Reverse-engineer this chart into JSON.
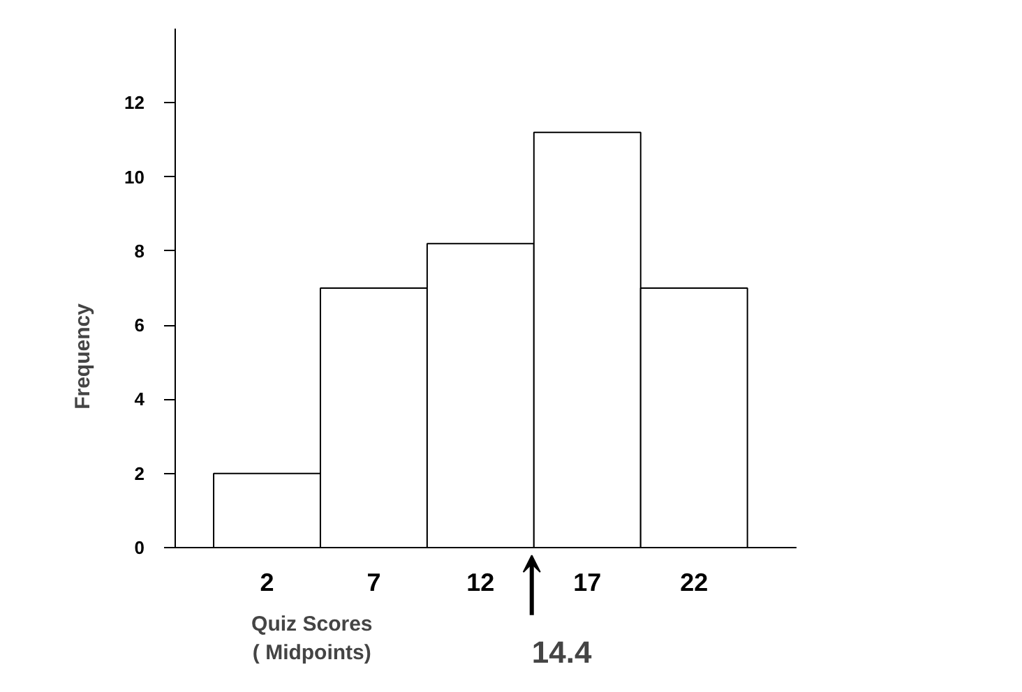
{
  "chart_data": {
    "type": "histogram",
    "xlabel": "Quiz Scores\n( Midpoints)",
    "ylabel": "Frequency",
    "bins": [
      -0.5,
      4.5,
      9.5,
      14.5,
      19.5,
      24.5
    ],
    "values": [
      2,
      7,
      8.2,
      11.2,
      7
    ],
    "color": "#ffffff",
    "xlim": [
      -2.3,
      26.8
    ],
    "xticks": [
      2,
      7,
      12,
      17,
      22
    ],
    "ylim": [
      0,
      14
    ],
    "yticks": [
      0,
      2,
      4,
      6,
      8,
      10,
      12
    ],
    "annotations": [
      {
        "text": "14.4",
        "x": 14.4,
        "y": 0
      }
    ],
    "grid": false
  }
}
